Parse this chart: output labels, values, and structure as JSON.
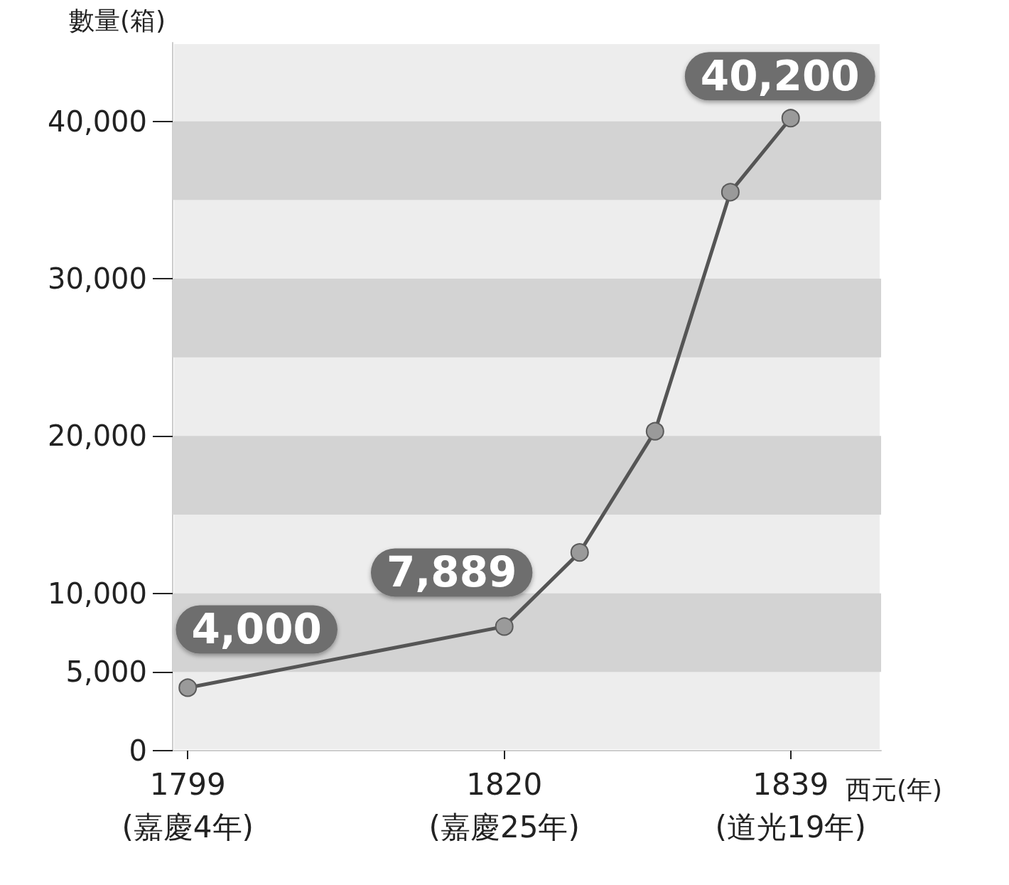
{
  "chart_data": {
    "type": "line",
    "ylabel": "數量(箱)",
    "xlabel": "西元(年)",
    "x": [
      1799,
      1820,
      1825,
      1830,
      1835,
      1839
    ],
    "series": [
      {
        "color": "#555555",
        "values": [
          4000,
          7889,
          12600,
          20300,
          35500,
          40200
        ],
        "value_labels": [
          "4,000",
          "7,889",
          null,
          null,
          null,
          "40,200"
        ]
      }
    ],
    "xlim": [
      1798,
      1845
    ],
    "xticks": [
      1799,
      1820,
      1839
    ],
    "annotations": [
      "(嘉慶4年)",
      "(嘉慶25年)",
      "(道光19年)"
    ],
    "ylim": [
      0,
      45000
    ],
    "yticks": [
      0,
      {
        "value": 5000,
        "label": "5,000"
      },
      {
        "value": 10000,
        "label": "10,000"
      },
      {
        "value": 20000,
        "label": "20,000"
      },
      {
        "value": 30000,
        "label": "30,000"
      },
      {
        "value": 40000,
        "label": "40,000"
      }
    ],
    "bands": [
      {
        "axis": "y",
        "from": 5000,
        "to": 10000,
        "color": "#d3d3d3"
      },
      {
        "axis": "y",
        "from": 15000,
        "to": 20000,
        "color": "#d3d3d3"
      },
      {
        "axis": "y",
        "from": 25000,
        "to": 30000,
        "color": "#d3d3d3"
      },
      {
        "axis": "y",
        "from": 35000,
        "to": 40000,
        "color": "#d3d3d3"
      }
    ],
    "marker": "circle",
    "grid": false
  }
}
